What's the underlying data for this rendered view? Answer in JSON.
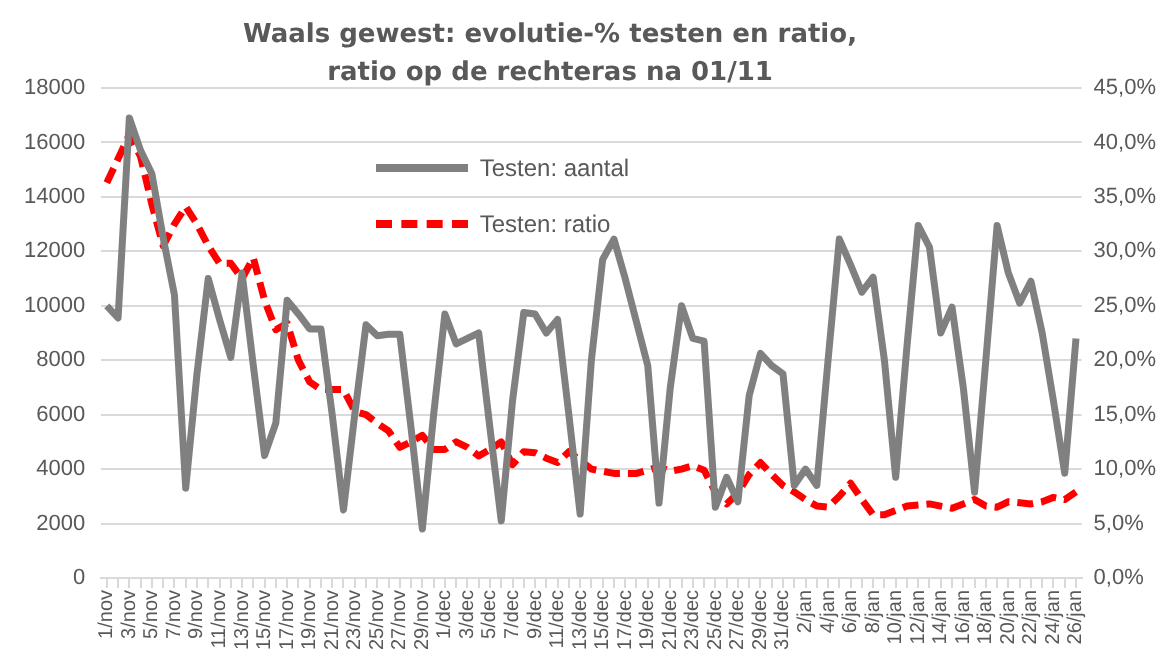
{
  "chart_data": {
    "type": "line",
    "title": "Waals gewest: evolutie-% testen en ratio, ratio op de rechteras na 01/11",
    "categories": [
      "1/nov",
      null,
      "3/nov",
      null,
      "5/nov",
      null,
      "7/nov",
      null,
      "9/nov",
      null,
      "11/nov",
      null,
      "13/nov",
      null,
      "15/nov",
      null,
      "17/nov",
      null,
      "19/nov",
      null,
      "21/nov",
      null,
      "23/nov",
      null,
      "25/nov",
      null,
      "27/nov",
      null,
      "29/nov",
      null,
      "1/dec",
      null,
      "3/dec",
      null,
      "5/dec",
      null,
      "7/dec",
      null,
      "9/dec",
      null,
      "11/dec",
      null,
      "13/dec",
      null,
      "15/dec",
      null,
      "17/dec",
      null,
      "19/dec",
      null,
      "21/dec",
      null,
      "23/dec",
      null,
      "25/dec",
      null,
      "27/dec",
      null,
      "29/dec",
      null,
      "31/dec",
      null,
      "2/jan",
      null,
      "4/jan",
      null,
      "6/jan",
      null,
      "8/jan",
      null,
      "10/jan",
      null,
      "12/jan",
      null,
      "14/jan",
      null,
      "16/jan",
      null,
      "18/jan",
      null,
      "20/jan",
      null,
      "22/jan",
      null,
      "24/jan",
      null,
      "26/jan"
    ],
    "series": [
      {
        "name": "Testen: aantal",
        "color": "#808080",
        "line_style": "solid",
        "values": [
          10000,
          9550,
          16900,
          15700,
          14850,
          12500,
          10400,
          3300,
          7500,
          11000,
          9500,
          8100,
          11200,
          7800,
          4500,
          5700,
          10200,
          9700,
          9150,
          9150,
          6000,
          2500,
          6000,
          9300,
          8900,
          8950,
          8950,
          5500,
          1800,
          6000,
          9700,
          8600,
          8800,
          9000,
          5500,
          2100,
          6500,
          9750,
          9700,
          9000,
          9500,
          6000,
          2350,
          8000,
          11700,
          12450,
          11000,
          9400,
          7800,
          2750,
          7000,
          10000,
          8800,
          8700,
          2600,
          3700,
          2800,
          6700,
          8250,
          7800,
          7500,
          3400,
          4000,
          3400,
          8000,
          12450,
          11500,
          10500,
          11050,
          8000,
          3700,
          8500,
          12950,
          12150,
          9000,
          9950,
          7000,
          3150,
          8000,
          12950,
          11200,
          10100,
          10900,
          9000,
          6500,
          3850,
          8800
        ]
      },
      {
        "name": "Testen: ratio",
        "color": "#ff0000",
        "line_style": "dashed",
        "axis": "y2",
        "values": [
          36.3,
          38.5,
          40.7,
          38.7,
          34.3,
          30.5,
          32.5,
          34.1,
          32.5,
          30.5,
          28.9,
          28.9,
          27.5,
          29.4,
          25.5,
          22.8,
          23.4,
          20,
          18,
          17.3,
          17.3,
          17.3,
          15.3,
          15,
          14.2,
          13.5,
          12,
          12.5,
          13.1,
          11.8,
          11.8,
          12.5,
          12,
          11.2,
          11.8,
          12.5,
          10.4,
          11.6,
          11.5,
          11,
          10.6,
          11.6,
          10.8,
          10,
          9.8,
          9.6,
          9.6,
          9.6,
          9.9,
          10.2,
          9.8,
          10,
          10.3,
          9.9,
          7.9,
          6.8,
          7.8,
          9.5,
          10.6,
          9.5,
          8.5,
          7.9,
          7.2,
          6.6,
          6.5,
          7.5,
          8.7,
          7.2,
          5.8,
          5.8,
          6.2,
          6.6,
          6.7,
          6.8,
          6.6,
          6.4,
          6.8,
          7.2,
          6.6,
          6.5,
          7,
          6.9,
          6.8,
          7,
          7.4,
          7.2,
          7.9
        ]
      }
    ],
    "ylim": [
      0,
      18000
    ],
    "yticks": [
      0,
      2000,
      4000,
      6000,
      8000,
      10000,
      12000,
      14000,
      16000,
      18000
    ],
    "y2lim": [
      0,
      45
    ],
    "y2ticks": [
      {
        "value": 0,
        "label": "0,0%"
      },
      {
        "value": 5,
        "label": "5,0%"
      },
      {
        "value": 10,
        "label": "10,0%"
      },
      {
        "value": 15,
        "label": "15,0%"
      },
      {
        "value": 20,
        "label": "20,0%"
      },
      {
        "value": 25,
        "label": "25,0%"
      },
      {
        "value": 30,
        "label": "30,0%"
      },
      {
        "value": 35,
        "label": "35,0%"
      },
      {
        "value": 40,
        "label": "40,0%"
      },
      {
        "value": 45,
        "label": "45,0%"
      }
    ],
    "grid": "y",
    "legend": "top",
    "marker": "none"
  }
}
